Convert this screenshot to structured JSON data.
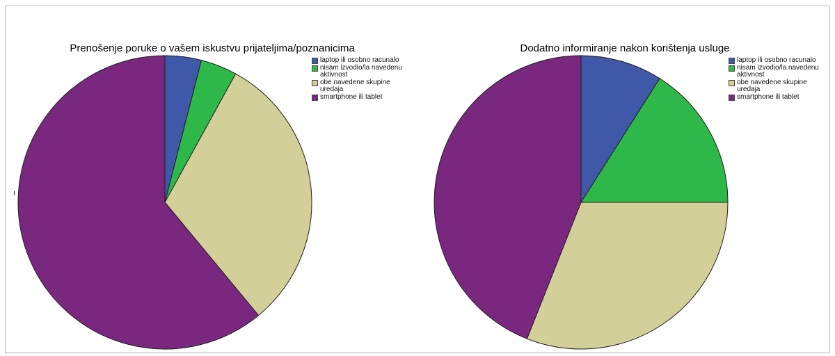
{
  "colors": {
    "laptop": "#3f58a8",
    "nisam": "#2fb84a",
    "obe": "#d3cf98",
    "smartphone": "#7a2780"
  },
  "chart_data": [
    {
      "type": "pie",
      "title": "Prenošenje poruke o vašem iskustvu prijateljima/poznanicima",
      "legend_position": "top-right",
      "categories": [
        "laptop ili osobno racunalo",
        "nisam izvodio/la navedenu aktivnost",
        "obe navedene skupine uredaja",
        "smartphone ili tablet"
      ],
      "values": [
        4,
        4,
        31,
        61
      ]
    },
    {
      "type": "pie",
      "title": "Dodatno informiranje nakon korištenja usluge",
      "legend_position": "top-right",
      "categories": [
        "laptop ili osobno racunalo",
        "nisam izvodio/la navedenu aktivnost",
        "obe navedene skupine uredaja",
        "smartphone ili tablet"
      ],
      "values": [
        9,
        16,
        31,
        44
      ]
    }
  ]
}
